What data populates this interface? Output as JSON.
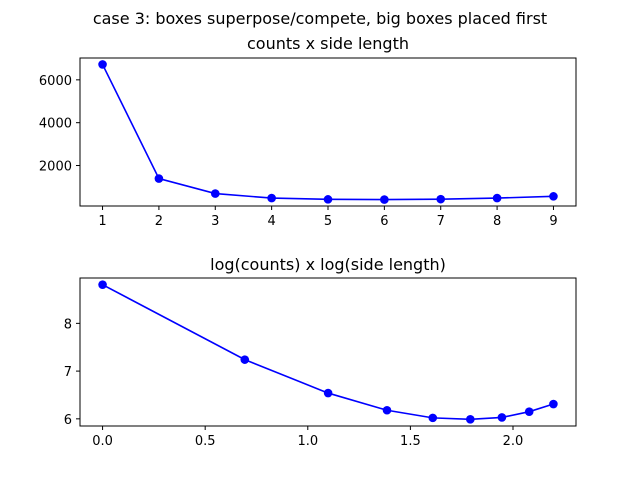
{
  "figure": {
    "suptitle": "case 3: boxes superpose/compete, big boxes placed first"
  },
  "chart_data": [
    {
      "type": "line",
      "title": "counts x side length",
      "xlabel": "",
      "ylabel": "",
      "color": "#0000ff",
      "marker": "circle",
      "grid": false,
      "x": [
        1,
        2,
        3,
        4,
        5,
        6,
        7,
        8,
        9
      ],
      "y": [
        6720,
        1390,
        690,
        480,
        420,
        410,
        430,
        480,
        560
      ],
      "xlim": [
        0.6,
        9.4
      ],
      "ylim": [
        110,
        7020
      ],
      "xticks": [
        1,
        2,
        3,
        4,
        5,
        6,
        7,
        8,
        9
      ],
      "xtick_labels": [
        "1",
        "2",
        "3",
        "4",
        "5",
        "6",
        "7",
        "8",
        "9"
      ],
      "yticks": [
        2000,
        4000,
        6000
      ],
      "ytick_labels": [
        "2000",
        "4000",
        "6000"
      ]
    },
    {
      "type": "line",
      "title": "log(counts) x log(side length)",
      "xlabel": "",
      "ylabel": "",
      "color": "#0000ff",
      "marker": "circle",
      "grid": false,
      "x": [
        0.0,
        0.693,
        1.099,
        1.386,
        1.609,
        1.792,
        1.946,
        2.079,
        2.197
      ],
      "y": [
        8.81,
        7.24,
        6.54,
        6.18,
        6.02,
        5.99,
        6.03,
        6.15,
        6.31
      ],
      "xlim": [
        -0.11,
        2.307
      ],
      "ylim": [
        5.85,
        8.95
      ],
      "xticks": [
        0.0,
        0.5,
        1.0,
        1.5,
        2.0
      ],
      "xtick_labels": [
        "0.0",
        "0.5",
        "1.0",
        "1.5",
        "2.0"
      ],
      "yticks": [
        6,
        7,
        8
      ],
      "ytick_labels": [
        "6",
        "7",
        "8"
      ]
    }
  ]
}
